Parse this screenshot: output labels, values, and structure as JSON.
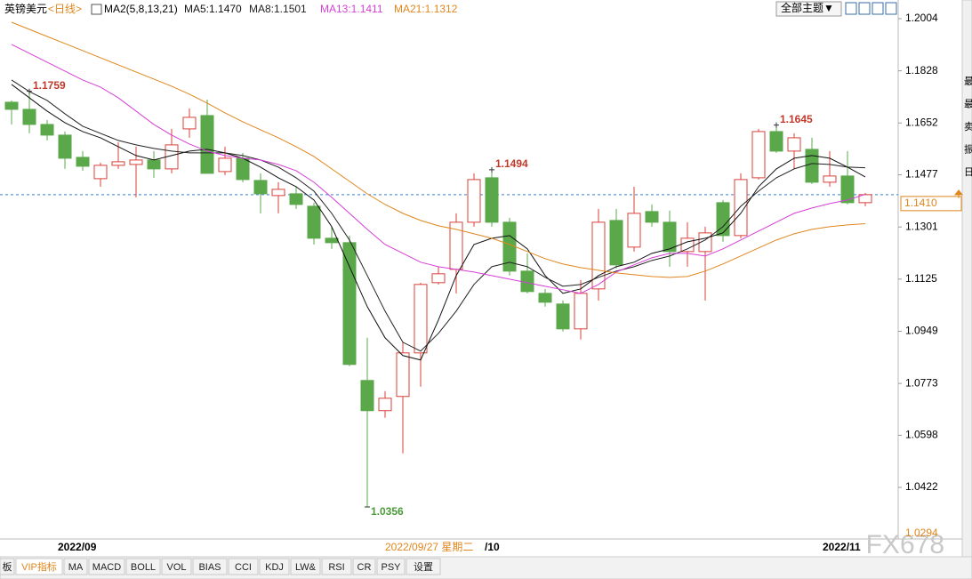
{
  "chart_data": {
    "type": "candlestick",
    "title": "英镑美元",
    "subtitle": "<日线>",
    "indicator": "MA2(5,8,13,21)",
    "categories": [
      null,
      null,
      null,
      "2022/09",
      null,
      null,
      null,
      null,
      null,
      null,
      null,
      null,
      null,
      null,
      null,
      null,
      null,
      null,
      null,
      null,
      null,
      null,
      null,
      null,
      null,
      null,
      null,
      "/10",
      null,
      null,
      null,
      null,
      null,
      null,
      null,
      null,
      null,
      null,
      null,
      null,
      null,
      null,
      null,
      null,
      null,
      null,
      "2022/11",
      null,
      null
    ],
    "crosshair_date": "2022/09/27 星期二",
    "open": [
      1.1722,
      1.1698,
      1.1647,
      1.1611,
      1.1536,
      1.1464,
      1.1509,
      1.1512,
      1.1527,
      1.1497,
      1.1632,
      1.1677,
      1.1488,
      1.1533,
      1.1458,
      1.1407,
      1.1413,
      1.1371,
      1.1263,
      1.1248,
      1.0783,
      1.0681,
      1.0729,
      1.0876,
      1.1113,
      1.1158,
      1.1317,
      1.1467,
      1.1317,
      1.1152,
      1.1077,
      1.1041,
      1.0957,
      1.1092,
      1.1323,
      1.1233,
      1.1353,
      1.1317,
      1.1218,
      1.1218,
      1.1383,
      1.1272,
      1.1467,
      1.1623,
      1.1557,
      1.1563,
      1.1452,
      1.1473,
      1.1383
    ],
    "high": [
      1.1728,
      1.1759,
      1.1662,
      1.1623,
      1.1557,
      1.1518,
      1.1587,
      1.1572,
      1.1557,
      1.1632,
      1.1701,
      1.1731,
      1.1572,
      1.1551,
      1.1482,
      1.1452,
      1.1437,
      1.1383,
      1.1302,
      1.1272,
      1.0927,
      1.0747,
      1.0912,
      1.1113,
      1.1167,
      1.1347,
      1.1482,
      1.1494,
      1.1332,
      1.1212,
      1.1092,
      1.1053,
      1.1122,
      1.1362,
      1.1362,
      1.1437,
      1.1377,
      1.1356,
      1.1317,
      1.1302,
      1.1392,
      1.1482,
      1.1632,
      1.1645,
      1.1617,
      1.1602,
      1.1557,
      1.1557,
      1.1416
    ],
    "low": [
      1.1647,
      1.1617,
      1.1593,
      1.1497,
      1.1491,
      1.1437,
      1.1497,
      1.1401,
      1.1467,
      1.1482,
      1.1602,
      1.1482,
      1.1476,
      1.1452,
      1.1347,
      1.1347,
      1.1362,
      1.1242,
      1.1227,
      1.0831,
      1.0356,
      1.0657,
      1.0537,
      1.0762,
      1.1107,
      1.1077,
      1.1302,
      1.1302,
      1.1137,
      1.1077,
      1.1032,
      1.0948,
      1.0921,
      1.1053,
      1.1161,
      1.1218,
      1.1302,
      1.1167,
      1.1167,
      1.1053,
      1.1251,
      1.1263,
      1.1461,
      1.1551,
      1.1497,
      1.1446,
      1.1437,
      1.1377,
      1.1371
    ],
    "close": [
      1.1698,
      1.1647,
      1.1611,
      1.1533,
      1.1506,
      1.1509,
      1.1521,
      1.1527,
      1.1497,
      1.1578,
      1.1671,
      1.1482,
      1.1533,
      1.1461,
      1.1413,
      1.1428,
      1.1377,
      1.1263,
      1.1248,
      1.0837,
      1.0681,
      1.0723,
      1.0876,
      1.1107,
      1.1143,
      1.1317,
      1.1461,
      1.1317,
      1.1152,
      1.1083,
      1.1047,
      1.0957,
      1.1077,
      1.1317,
      1.1173,
      1.1347,
      1.1317,
      1.1218,
      1.1263,
      1.1281,
      1.1272,
      1.1461,
      1.1623,
      1.1557,
      1.1602,
      1.1452,
      1.1473,
      1.1383,
      1.141
    ],
    "up_color": "#d9413a",
    "down_color": "#5aa84a",
    "high_labels": [
      null,
      1.1759,
      null,
      null,
      null,
      null,
      null,
      null,
      null,
      null,
      null,
      null,
      null,
      null,
      null,
      null,
      null,
      null,
      null,
      null,
      null,
      null,
      null,
      null,
      null,
      null,
      null,
      1.1494,
      null,
      null,
      null,
      null,
      null,
      null,
      null,
      null,
      null,
      null,
      null,
      null,
      null,
      null,
      null,
      1.1645,
      null,
      null,
      null,
      null,
      null
    ],
    "low_labels": [
      null,
      null,
      null,
      null,
      null,
      null,
      null,
      null,
      null,
      null,
      null,
      null,
      null,
      null,
      null,
      null,
      null,
      null,
      null,
      null,
      1.0356,
      null,
      null,
      null,
      null,
      null,
      null,
      null,
      null,
      null,
      null,
      null,
      null,
      null,
      null,
      null,
      null,
      null,
      null,
      null,
      null,
      null,
      null,
      null,
      null,
      null,
      null,
      null,
      null
    ],
    "series": [
      {
        "name": "MA5",
        "legend_label": "MA5:1.1470",
        "color": "#111111",
        "values": [
          1.1782,
          1.1737,
          1.1692,
          1.1653,
          1.1623,
          1.1602,
          1.1572,
          1.1542,
          1.1527,
          1.1542,
          1.1557,
          1.1563,
          1.1551,
          1.1533,
          1.1503,
          1.1467,
          1.1437,
          1.1392,
          1.1302,
          1.1167,
          1.1032,
          1.0927,
          1.0867,
          1.0852,
          1.0987,
          1.1137,
          1.1242,
          1.1263,
          1.1272,
          1.1227,
          1.1137,
          1.1077,
          1.1092,
          1.1137,
          1.1167,
          1.1182,
          1.1212,
          1.1227,
          1.1251,
          1.1263,
          1.1281,
          1.1347,
          1.1437,
          1.1497,
          1.1533,
          1.1542,
          1.1533,
          1.1503,
          1.147
        ]
      },
      {
        "name": "MA8",
        "legend_label": "MA8:1.1501",
        "color": "#222222",
        "values": [
          1.1797,
          1.1758,
          1.1728,
          1.1683,
          1.1641,
          1.1617,
          1.1593,
          1.1578,
          1.1566,
          1.1557,
          1.1551,
          1.1551,
          1.1551,
          1.1542,
          1.1527,
          1.1503,
          1.1467,
          1.1422,
          1.1347,
          1.1257,
          1.1137,
          1.1017,
          1.0912,
          1.0882,
          1.0942,
          1.1017,
          1.1107,
          1.1167,
          1.1182,
          1.1167,
          1.1131,
          1.1101,
          1.1107,
          1.1131,
          1.1152,
          1.1167,
          1.1188,
          1.1203,
          1.1227,
          1.1257,
          1.1302,
          1.1371,
          1.1422,
          1.1467,
          1.1497,
          1.1515,
          1.1512,
          1.1503,
          1.1501
        ]
      },
      {
        "name": "MA13",
        "legend_label": "MA13:1.1411",
        "color": "#d63fd6",
        "values": [
          1.1917,
          1.1887,
          1.1857,
          1.1827,
          1.1797,
          1.1773,
          1.1737,
          1.1692,
          1.1647,
          1.1611,
          1.1581,
          1.1557,
          1.1542,
          1.1533,
          1.1527,
          1.1512,
          1.1491,
          1.1452,
          1.1401,
          1.1347,
          1.1293,
          1.1242,
          1.1212,
          1.1182,
          1.1167,
          1.1158,
          1.1149,
          1.1137,
          1.1125,
          1.1113,
          1.1101,
          1.1089,
          1.1077,
          1.1107,
          1.1149,
          1.1173,
          1.1197,
          1.1212,
          1.1212,
          1.1203,
          1.1227,
          1.1257,
          1.1287,
          1.1317,
          1.1347,
          1.1365,
          1.138,
          1.1392,
          1.1411
        ]
      },
      {
        "name": "MA21",
        "legend_label": "MA21:1.1312",
        "color": "#e0861c",
        "values": [
          1.1992,
          1.1968,
          1.1944,
          1.192,
          1.1896,
          1.1872,
          1.1848,
          1.1824,
          1.18,
          1.1776,
          1.1749,
          1.1719,
          1.1686,
          1.1656,
          1.1629,
          1.1602,
          1.1572,
          1.1539,
          1.1497,
          1.1455,
          1.1413,
          1.1377,
          1.1347,
          1.1323,
          1.1305,
          1.1293,
          1.1278,
          1.1263,
          1.1242,
          1.1218,
          1.1194,
          1.1176,
          1.1164,
          1.1155,
          1.1146,
          1.114,
          1.1134,
          1.1131,
          1.1134,
          1.1152,
          1.1176,
          1.1203,
          1.123,
          1.1257,
          1.1278,
          1.1293,
          1.1302,
          1.1308,
          1.1312
        ]
      }
    ],
    "ylim": [
      1.0251,
      1.2067
    ],
    "yticks": [
      1.2004,
      1.1828,
      1.1652,
      1.1477,
      1.1301,
      1.1125,
      1.0949,
      1.0773,
      1.0598,
      1.0422
    ],
    "bottom_label": 1.0294,
    "last_price": {
      "value": 1.141,
      "label": "1.1410"
    },
    "theme_button": "全部主题▼",
    "tabs": [
      "板",
      "VIP指标",
      "MA",
      "MACD",
      "BOLL",
      "VOL",
      "BIAS",
      "CCI",
      "KDJ",
      "LW&",
      "RSI",
      "CR",
      "PSY",
      "设置"
    ],
    "side_panel": [
      "最",
      "最",
      "卖",
      "振",
      "日"
    ],
    "watermark": "FX678"
  }
}
